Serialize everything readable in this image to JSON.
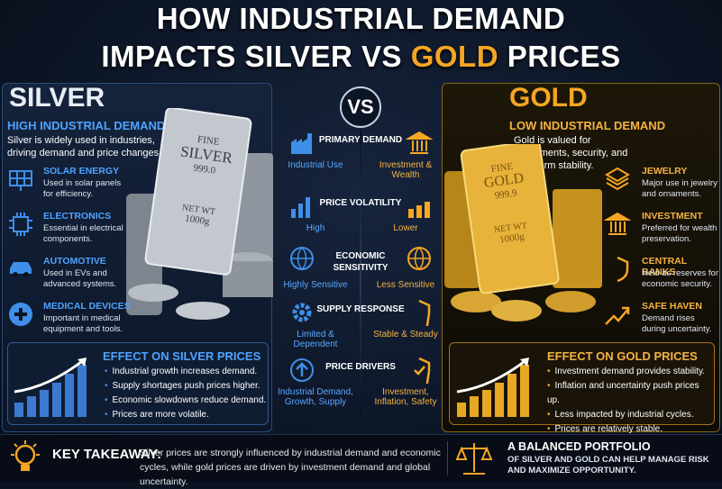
{
  "title": {
    "line1": "HOW INDUSTRIAL DEMAND",
    "line2_start": "IMPACTS SILVER VS",
    "line2_gold": "GOLD",
    "line2_end": "PRICES"
  },
  "vs": "VS",
  "silver": {
    "name": "SILVER",
    "subtitle": "HIGH INDUSTRIAL DEMAND",
    "description": "Silver is widely used in industries, driving demand and price changes.",
    "bar_text": [
      "FINE",
      "SILVER",
      "999.0",
      "NET WT",
      "1000g"
    ],
    "uses": [
      {
        "title": "SOLAR ENERGY",
        "text": "Used in solar panels for efficiency."
      },
      {
        "title": "ELECTRONICS",
        "text": "Essential in electrical components."
      },
      {
        "title": "AUTOMOTIVE",
        "text": "Used in EVs and advanced systems."
      },
      {
        "title": "MEDICAL DEVICES",
        "text": "Important in medical equipment and tools."
      }
    ],
    "effect": {
      "title": "EFFECT ON SILVER PRICES",
      "points": [
        "Industrial growth increases demand.",
        "Supply shortages push prices higher.",
        "Economic slowdowns reduce demand.",
        "Prices are more volatile."
      ]
    }
  },
  "gold": {
    "name": "GOLD",
    "subtitle": "LOW INDUSTRIAL DEMAND",
    "description": "Gold is valued for investments, security, and long-term stability.",
    "bar_text": [
      "FINE",
      "GOLD",
      "999.9",
      "NET WT",
      "1000g"
    ],
    "uses": [
      {
        "title": "JEWELRY",
        "text": "Major use in jewelry and ornaments."
      },
      {
        "title": "INVESTMENT",
        "text": "Preferred for wealth preservation."
      },
      {
        "title": "CENTRAL BANKS",
        "text": "Held as reserves for economic security."
      },
      {
        "title": "SAFE HAVEN",
        "text": "Demand rises during uncertainty."
      }
    ],
    "effect": {
      "title": "EFFECT ON GOLD PRICES",
      "points": [
        "Investment demand provides stability.",
        "Inflation and uncertainty push prices up.",
        "Less impacted by industrial cycles.",
        "Prices are relatively stable."
      ]
    }
  },
  "comparison": {
    "rows": [
      {
        "label": "PRIMARY DEMAND",
        "silver": "Industrial Use",
        "gold": "Investment & Wealth"
      },
      {
        "label": "PRICE VOLATILITY",
        "silver": "High",
        "gold": "Lower"
      },
      {
        "label": "ECONOMIC SENSITIVITY",
        "silver": "Highly Sensitive",
        "gold": "Less Sensitive"
      },
      {
        "label": "SUPPLY RESPONSE",
        "silver": "Limited & Dependent",
        "gold": "Stable & Steady"
      },
      {
        "label": "PRICE DRIVERS",
        "silver": "Industrial Demand, Growth, Supply",
        "gold": "Investment, Inflation, Safety"
      }
    ]
  },
  "takeaway": {
    "label": "KEY TAKEAWAY:",
    "text": "Silver prices are strongly influenced by industrial demand and economic cycles, while gold prices are driven by investment demand and global uncertainty."
  },
  "portfolio": {
    "title": "A BALANCED PORTFOLIO",
    "text": "OF SILVER AND GOLD CAN HELP MANAGE RISK AND MAXIMIZE OPPORTUNITY."
  }
}
